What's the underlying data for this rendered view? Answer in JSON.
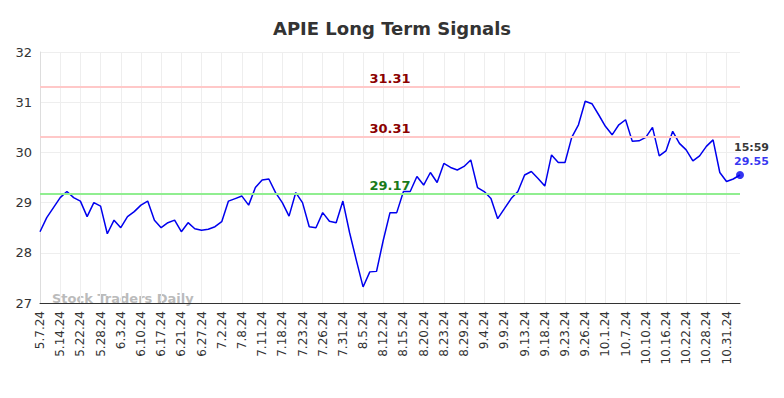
{
  "chart_data": {
    "type": "line",
    "title": "APIE Long Term Signals",
    "categories": [
      "5.7.24",
      null,
      null,
      "5.14.24",
      null,
      null,
      "5.22.24",
      null,
      null,
      "5.28.24",
      null,
      null,
      "6.3.24",
      null,
      null,
      "6.10.24",
      null,
      null,
      "6.17.24",
      null,
      null,
      "6.21.24",
      null,
      null,
      "6.27.24",
      null,
      null,
      "7.2.24",
      null,
      null,
      "7.8.24",
      null,
      null,
      "7.11.24",
      null,
      null,
      "7.18.24",
      null,
      null,
      "7.23.24",
      null,
      null,
      "7.26.24",
      null,
      null,
      "7.31.24",
      null,
      null,
      "8.5.24",
      null,
      null,
      "8.12.24",
      null,
      null,
      "8.15.24",
      null,
      null,
      "8.20.24",
      null,
      null,
      "8.23.24",
      null,
      null,
      "8.29.24",
      null,
      null,
      "9.4.24",
      null,
      null,
      "9.9.24",
      null,
      null,
      "9.13.24",
      null,
      null,
      "9.18.24",
      null,
      null,
      "9.23.24",
      null,
      null,
      "9.26.24",
      null,
      null,
      "10.1.24",
      null,
      null,
      "10.7.24",
      null,
      null,
      "10.10.24",
      null,
      null,
      "10.16.24",
      null,
      null,
      "10.22.24",
      null,
      null,
      "10.28.24",
      null,
      null,
      "10.31.24",
      null,
      null
    ],
    "values": [
      28.42,
      28.7,
      28.9,
      29.1,
      29.22,
      29.1,
      29.03,
      28.72,
      29.0,
      28.93,
      28.38,
      28.65,
      28.5,
      28.72,
      28.82,
      28.95,
      29.03,
      28.65,
      28.5,
      28.6,
      28.65,
      28.42,
      28.6,
      28.48,
      28.45,
      28.47,
      28.52,
      28.62,
      29.03,
      29.08,
      29.13,
      28.95,
      29.3,
      29.45,
      29.47,
      29.2,
      29.0,
      28.73,
      29.2,
      29.0,
      28.52,
      28.5,
      28.8,
      28.63,
      28.6,
      29.03,
      28.4,
      27.85,
      27.32,
      27.62,
      27.63,
      28.25,
      28.8,
      28.8,
      29.22,
      29.22,
      29.52,
      29.35,
      29.6,
      29.4,
      29.78,
      29.7,
      29.65,
      29.72,
      29.85,
      29.3,
      29.22,
      29.08,
      28.68,
      28.88,
      29.08,
      29.22,
      29.55,
      29.62,
      29.48,
      29.33,
      29.95,
      29.8,
      29.8,
      30.3,
      30.55,
      31.02,
      30.97,
      30.75,
      30.52,
      30.35,
      30.55,
      30.65,
      30.22,
      30.23,
      30.3,
      30.5,
      29.93,
      30.03,
      30.42,
      30.18,
      30.05,
      29.83,
      29.93,
      30.12,
      30.25,
      29.6,
      29.42,
      29.47,
      29.55
    ],
    "color": "#0000ee",
    "reference_lines": [
      {
        "value": 31.31,
        "color": "#ffc8c8"
      },
      {
        "value": 30.31,
        "color": "#ffc8c8"
      },
      {
        "value": 29.17,
        "color": "#90ee90"
      }
    ],
    "last_point_time": "15:59",
    "watermark": "Stock Traders Daily",
    "ylim": [
      27,
      32
    ],
    "yticks": [
      27,
      28,
      29,
      30,
      31,
      32
    ],
    "grid": true
  }
}
